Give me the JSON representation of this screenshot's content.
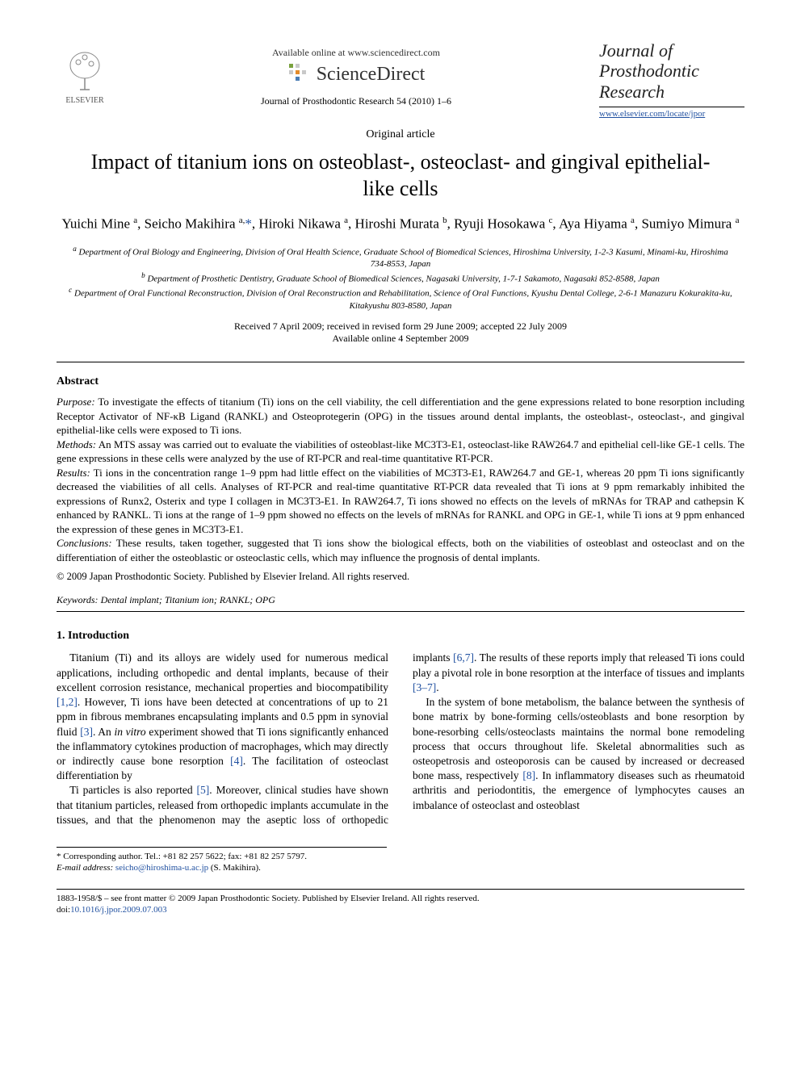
{
  "header": {
    "publisher": "ELSEVIER",
    "available_online": "Available online at www.sciencedirect.com",
    "sciencedirect": "ScienceDirect",
    "journal_ref": "Journal of Prosthodontic Research 54 (2010) 1–6",
    "journal_title_l1": "Journal of",
    "journal_title_l2": "Prosthodontic",
    "journal_title_l3": "Research",
    "journal_link": "www.elsevier.com/locate/jpor"
  },
  "article": {
    "type": "Original article",
    "title": "Impact of titanium ions on osteoblast-, osteoclast- and gingival epithelial-like cells",
    "authors_html": "Yuichi Mine <sup>a</sup>, Seicho Makihira <sup>a,</sup><a href='#'>*</a>, Hiroki Nikawa <sup>a</sup>, Hiroshi Murata <sup>b</sup>, Ryuji Hosokawa <sup>c</sup>, Aya Hiyama <sup>a</sup>, Sumiyo Mimura <sup>a</sup>",
    "affiliations": {
      "a": "Department of Oral Biology and Engineering, Division of Oral Health Science, Graduate School of Biomedical Sciences, Hiroshima University, 1-2-3 Kasumi, Minami-ku, Hiroshima 734-8553, Japan",
      "b": "Department of Prosthetic Dentistry, Graduate School of Biomedical Sciences, Nagasaki University, 1-7-1 Sakamoto, Nagasaki 852-8588, Japan",
      "c": "Department of Oral Functional Reconstruction, Division of Oral Reconstruction and Rehabilitation, Science of Oral Functions, Kyushu Dental College, 2-6-1 Manazuru Kokurakita-ku, Kitakyushu 803-8580, Japan"
    },
    "dates_l1": "Received 7 April 2009; received in revised form 29 June 2009; accepted 22 July 2009",
    "dates_l2": "Available online 4 September 2009"
  },
  "abstract": {
    "heading": "Abstract",
    "purpose_label": "Purpose:",
    "purpose": "To investigate the effects of titanium (Ti) ions on the cell viability, the cell differentiation and the gene expressions related to bone resorption including Receptor Activator of NF-κB Ligand (RANKL) and Osteoprotegerin (OPG) in the tissues around dental implants, the osteoblast-, osteoclast-, and gingival epithelial-like cells were exposed to Ti ions.",
    "methods_label": "Methods:",
    "methods": "An MTS assay was carried out to evaluate the viabilities of osteoblast-like MC3T3-E1, osteoclast-like RAW264.7 and epithelial cell-like GE-1 cells. The gene expressions in these cells were analyzed by the use of RT-PCR and real-time quantitative RT-PCR.",
    "results_label": "Results:",
    "results": "Ti ions in the concentration range 1–9 ppm had little effect on the viabilities of MC3T3-E1, RAW264.7 and GE-1, whereas 20 ppm Ti ions significantly decreased the viabilities of all cells. Analyses of RT-PCR and real-time quantitative RT-PCR data revealed that Ti ions at 9 ppm remarkably inhibited the expressions of Runx2, Osterix and type I collagen in MC3T3-E1. In RAW264.7, Ti ions showed no effects on the levels of mRNAs for TRAP and cathepsin K enhanced by RANKL. Ti ions at the range of 1–9 ppm showed no effects on the levels of mRNAs for RANKL and OPG in GE-1, while Ti ions at 9 ppm enhanced the expression of these genes in MC3T3-E1.",
    "conclusions_label": "Conclusions:",
    "conclusions": "These results, taken together, suggested that Ti ions show the biological effects, both on the viabilities of osteoblast and osteoclast and on the differentiation of either the osteoblastic or osteoclastic cells, which may influence the prognosis of dental implants.",
    "copyright": "© 2009 Japan Prosthodontic Society. Published by Elsevier Ireland. All rights reserved.",
    "keywords_label": "Keywords:",
    "keywords": "Dental implant; Titanium ion; RANKL; OPG"
  },
  "body": {
    "section1_heading": "1. Introduction",
    "para1": "Titanium (Ti) and its alloys are widely used for numerous medical applications, including orthopedic and dental implants, because of their excellent corrosion resistance, mechanical properties and biocompatibility [1,2]. However, Ti ions have been detected at concentrations of up to 21 ppm in fibrous membranes encapsulating implants and 0.5 ppm in synovial fluid [3]. An in vitro experiment showed that Ti ions significantly enhanced the inflammatory cytokines production of macrophages, which may directly or indirectly cause bone resorption [4]. The facilitation of osteoclast differentiation by",
    "para2": "Ti particles is also reported [5]. Moreover, clinical studies have shown that titanium particles, released from orthopedic implants accumulate in the tissues, and that the phenomenon may the aseptic loss of orthopedic implants [6,7]. The results of these reports imply that released Ti ions could play a pivotal role in bone resorption at the interface of tissues and implants [3–7].",
    "para3": "In the system of bone metabolism, the balance between the synthesis of bone matrix by bone-forming cells/osteoblasts and bone resorption by bone-resorbing cells/osteoclasts maintains the normal bone remodeling process that occurs throughout life. Skeletal abnormalities such as osteopetrosis and osteoporosis can be caused by increased or decreased bone mass, respectively [8]. In inflammatory diseases such as rheumatoid arthritis and periodontitis, the emergence of lymphocytes causes an imbalance of osteoclast and osteoblast",
    "refs": {
      "r1_2": "[1,2]",
      "r3": "[3]",
      "r4": "[4]",
      "r5": "[5]",
      "r6_7": "[6,7]",
      "r3_7": "[3–7]",
      "r8": "[8]"
    }
  },
  "footnote": {
    "corr_label": "* Corresponding author. Tel.: +81 82 257 5622; fax: +81 82 257 5797.",
    "email_label": "E-mail address:",
    "email": "seicho@hiroshima-u.ac.jp",
    "email_name": "(S. Makihira)."
  },
  "footer": {
    "issn": "1883-1958/$ – see front matter © 2009 Japan Prosthodontic Society. Published by Elsevier Ireland. All rights reserved.",
    "doi_label": "doi:",
    "doi": "10.1016/j.jpor.2009.07.003"
  },
  "colors": {
    "link": "#2050a0",
    "text": "#000000",
    "background": "#ffffff"
  }
}
